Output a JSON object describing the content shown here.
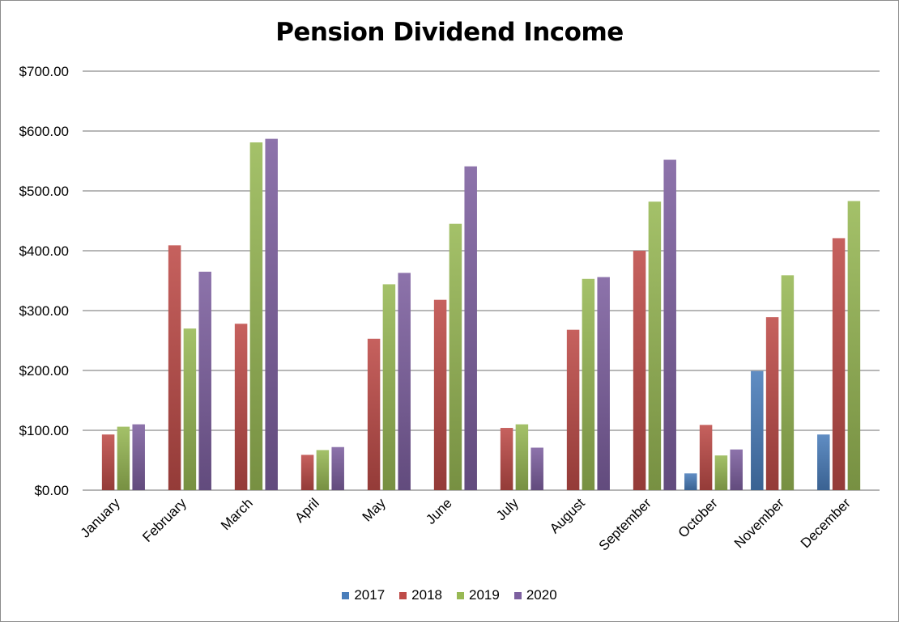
{
  "chart_data": {
    "type": "bar",
    "title": "Pension Dividend Income",
    "xlabel": "",
    "ylabel": "",
    "ylim": [
      0,
      700
    ],
    "yticks": [
      0,
      100,
      200,
      300,
      400,
      500,
      600,
      700
    ],
    "ytick_labels": [
      "$0.00",
      "$100.00",
      "$200.00",
      "$300.00",
      "$400.00",
      "$500.00",
      "$600.00",
      "$700.00"
    ],
    "grid": true,
    "legend_position": "bottom",
    "categories": [
      "January",
      "February",
      "March",
      "April",
      "May",
      "June",
      "July",
      "August",
      "September",
      "October",
      "November",
      "December"
    ],
    "series": [
      {
        "name": "2017",
        "color": "#4a7ebb",
        "values": [
          0,
          0,
          0,
          0,
          0,
          0,
          0,
          0,
          0,
          28,
          199,
          93
        ]
      },
      {
        "name": "2018",
        "color": "#be4b48",
        "values": [
          93,
          409,
          278,
          59,
          253,
          318,
          104,
          268,
          400,
          109,
          289,
          421
        ]
      },
      {
        "name": "2019",
        "color": "#98b954",
        "values": [
          106,
          270,
          581,
          67,
          344,
          445,
          110,
          353,
          482,
          58,
          359,
          483
        ]
      },
      {
        "name": "2020",
        "color": "#7d60a0",
        "values": [
          110,
          365,
          587,
          72,
          363,
          541,
          71,
          356,
          552,
          68,
          null,
          null
        ]
      }
    ]
  }
}
